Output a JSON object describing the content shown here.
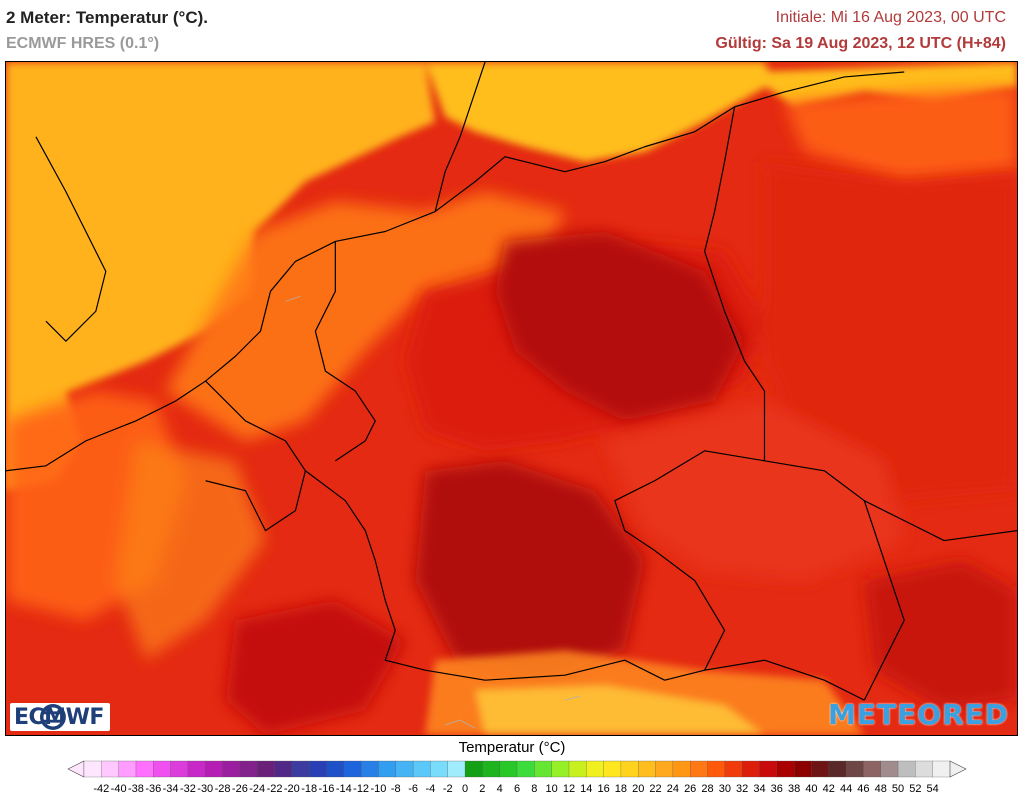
{
  "header": {
    "title": "2 Meter: Temperatur (°C).",
    "model": "ECMWF HRES (0.1°)",
    "init": "Initiale: Mi 16 Aug 2023, 00 UTC",
    "valid": "Gültig: Sa 19 Aug 2023, 12 UTC (H+84)"
  },
  "logos": {
    "left": "ECMWF",
    "right": "METEORED"
  },
  "legend": {
    "title": "Temperatur (°C)",
    "values": [
      -42,
      -40,
      -38,
      -36,
      -34,
      -32,
      -30,
      -28,
      -26,
      -24,
      -22,
      -20,
      -18,
      -16,
      -14,
      -12,
      -10,
      -8,
      -6,
      -4,
      -2,
      0,
      2,
      4,
      6,
      8,
      10,
      12,
      14,
      16,
      18,
      20,
      22,
      24,
      26,
      28,
      30,
      32,
      34,
      36,
      38,
      40,
      42,
      44,
      46,
      48,
      50,
      52,
      54
    ],
    "colors": [
      "#ffe6ff",
      "#ffc8ff",
      "#ff9cff",
      "#ff70ff",
      "#f050f0",
      "#dc3cdc",
      "#c828c8",
      "#b41eb4",
      "#9b1ea0",
      "#82208c",
      "#6a2078",
      "#502888",
      "#3c3ca0",
      "#2840b4",
      "#1e50c8",
      "#1e64dc",
      "#2880e6",
      "#329ef0",
      "#46b4f4",
      "#5ac8f8",
      "#78dcfa",
      "#a0ecfc",
      "#14a014",
      "#1eb41e",
      "#28c828",
      "#3cdc3c",
      "#64e632",
      "#96f028",
      "#c8f01e",
      "#f0f01e",
      "#ffe61e",
      "#ffd21e",
      "#ffbe1e",
      "#ffaa1e",
      "#ff9614",
      "#ff7814",
      "#ff5a0a",
      "#f03c0a",
      "#dc1e0a",
      "#c80a0a",
      "#aa0000",
      "#8c0000",
      "#6e1414",
      "#5a2828",
      "#6e4646",
      "#8c6464",
      "#a08c8c",
      "#bebebe",
      "#dcdcdc",
      "#f0f0f0"
    ]
  }
}
